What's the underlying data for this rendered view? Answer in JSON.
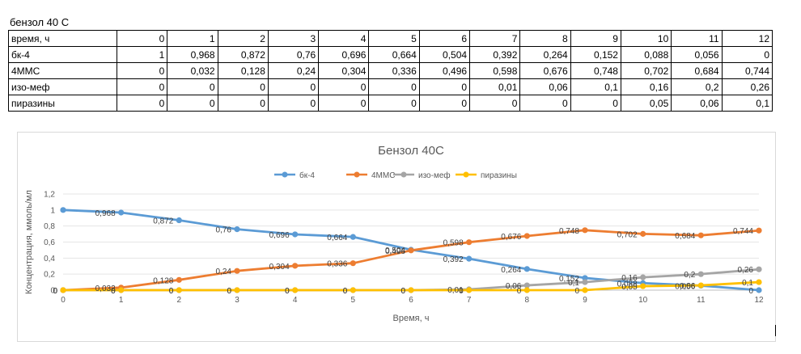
{
  "sheet": {
    "title": "бензол 40 С"
  },
  "table": {
    "header": "время, ч",
    "columns": [
      "0",
      "1",
      "2",
      "3",
      "4",
      "5",
      "6",
      "7",
      "8",
      "9",
      "10",
      "11",
      "12"
    ],
    "rows": [
      {
        "label": "бк-4",
        "cells": [
          "1",
          "0,968",
          "0,872",
          "0,76",
          "0,696",
          "0,664",
          "0,504",
          "0,392",
          "0,264",
          "0,152",
          "0,088",
          "0,056",
          "0"
        ]
      },
      {
        "label": "4ММС",
        "cells": [
          "0",
          "0,032",
          "0,128",
          "0,24",
          "0,304",
          "0,336",
          "0,496",
          "0,598",
          "0,676",
          "0,748",
          "0,702",
          "0,684",
          "0,744"
        ]
      },
      {
        "label": "изо-меф",
        "cells": [
          "0",
          "0",
          "0",
          "0",
          "0",
          "0",
          "0",
          "0,01",
          "0,06",
          "0,1",
          "0,16",
          "0,2",
          "0,26"
        ]
      },
      {
        "label": "пиразины",
        "cells": [
          "0",
          "0",
          "0",
          "0",
          "0",
          "0",
          "0",
          "0",
          "0",
          "0",
          "0,05",
          "0,06",
          "0,1"
        ]
      }
    ]
  },
  "chart_data": {
    "type": "line",
    "title": "Бензол 40С",
    "xlabel": "Время, ч",
    "ylabel": "Концентрация, ммоль/мл",
    "x": [
      0,
      1,
      2,
      3,
      4,
      5,
      6,
      7,
      8,
      9,
      10,
      11,
      12
    ],
    "xlim": [
      0,
      12
    ],
    "ylim": [
      0,
      1.2
    ],
    "yticks": [
      "0",
      "0,2",
      "0,4",
      "0,6",
      "0,8",
      "1",
      "1,2"
    ],
    "ytick_values": [
      0,
      0.2,
      0.4,
      0.6,
      0.8,
      1,
      1.2
    ],
    "grid": true,
    "legend": "top",
    "series": [
      {
        "name": "бк-4",
        "color": "#5b9bd5",
        "values": [
          1,
          0.968,
          0.872,
          0.76,
          0.696,
          0.664,
          0.504,
          0.392,
          0.264,
          0.152,
          0.088,
          0.056,
          0
        ],
        "labels": [
          "",
          "0,968",
          "0,872",
          "0,76",
          "0,696",
          "0,664",
          "0,504",
          "0,392",
          "0,264",
          "0,152",
          "0,088",
          "0,056",
          "0"
        ]
      },
      {
        "name": "4ММС",
        "color": "#ed7d31",
        "values": [
          0,
          0.032,
          0.128,
          0.24,
          0.304,
          0.336,
          0.496,
          0.598,
          0.676,
          0.748,
          0.702,
          0.684,
          0.744
        ],
        "labels": [
          "0",
          "0,032",
          "0,128",
          "0,24",
          "0,304",
          "0,336",
          "0,496",
          "0,598",
          "0,676",
          "0,748",
          "0,702",
          "0,684",
          "0,744"
        ]
      },
      {
        "name": "изо-меф",
        "color": "#a5a5a5",
        "values": [
          0,
          0,
          0,
          0,
          0,
          0,
          0,
          0.01,
          0.06,
          0.1,
          0.16,
          0.2,
          0.26
        ],
        "labels": [
          "0",
          "0",
          "0",
          "0",
          "0",
          "0",
          "0",
          "0,01",
          "0,06",
          "0,1",
          "0,16",
          "0,2",
          "0,26"
        ]
      },
      {
        "name": "пиразины",
        "color": "#ffc000",
        "values": [
          0,
          0,
          0,
          0,
          0,
          0,
          0,
          0,
          0,
          0,
          0.05,
          0.06,
          0.1
        ],
        "labels": [
          "0",
          "0",
          "0",
          "0",
          "0",
          "0",
          "0",
          "0",
          "0",
          "0",
          "0,05",
          "0,06",
          "0,1"
        ]
      }
    ]
  }
}
